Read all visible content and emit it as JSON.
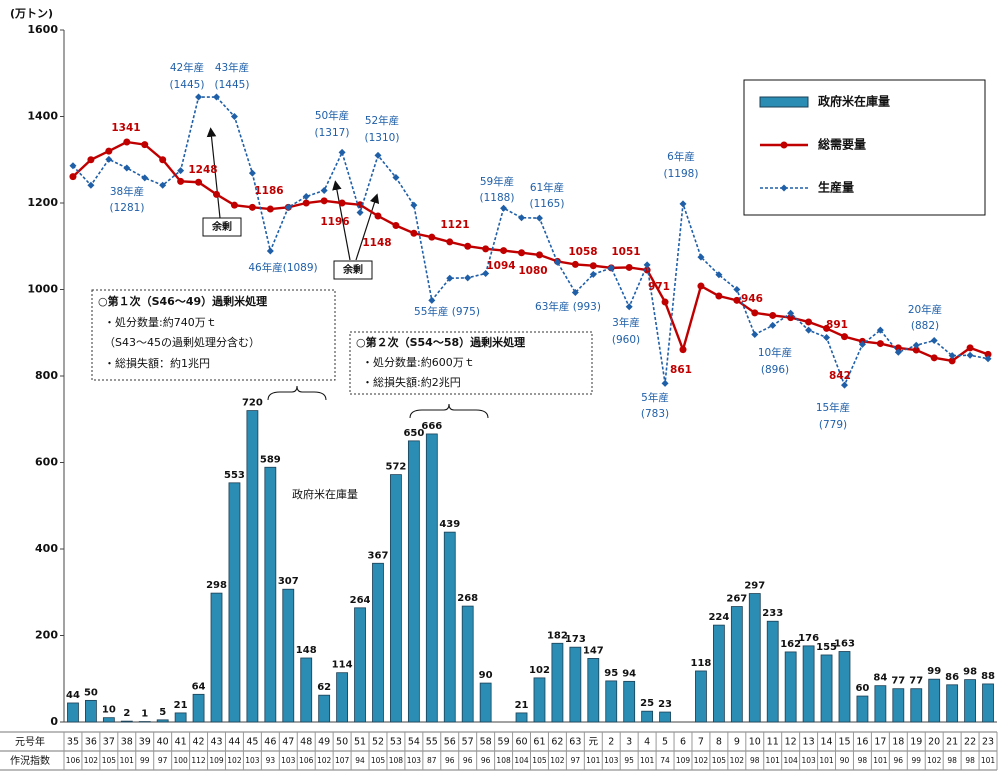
{
  "chart_data": {
    "type": "combo",
    "unit_label": "(万トン)",
    "row_labels": [
      "元号年",
      "作況指数"
    ],
    "categories": [
      "35",
      "36",
      "37",
      "38",
      "39",
      "40",
      "41",
      "42",
      "43",
      "44",
      "45",
      "46",
      "47",
      "48",
      "49",
      "50",
      "51",
      "52",
      "53",
      "54",
      "55",
      "56",
      "57",
      "58",
      "59",
      "60",
      "61",
      "62",
      "63",
      "元",
      "2",
      "3",
      "4",
      "5",
      "6",
      "7",
      "8",
      "9",
      "10",
      "11",
      "12",
      "13",
      "14",
      "15",
      "16",
      "17",
      "18",
      "19",
      "20",
      "21",
      "22",
      "23"
    ],
    "crop_index": [
      106,
      102,
      105,
      101,
      99,
      97,
      100,
      112,
      109,
      102,
      103,
      93,
      103,
      106,
      102,
      107,
      94,
      105,
      108,
      103,
      87,
      96,
      96,
      96,
      108,
      104,
      105,
      102,
      97,
      101,
      103,
      95,
      101,
      74,
      109,
      102,
      105,
      102,
      98,
      101,
      104,
      103,
      101,
      90,
      98,
      101,
      96,
      99,
      102,
      98,
      98,
      101
    ],
    "ylim": [
      0,
      1600
    ],
    "yticks": [
      0,
      200,
      400,
      600,
      800,
      1000,
      1200,
      1400,
      1600
    ],
    "legend": "upper right",
    "series": [
      {
        "name": "政府米在庫量",
        "kind": "bar",
        "color": "#2b8db3",
        "values": [
          44,
          50,
          10,
          2,
          1,
          5,
          21,
          64,
          298,
          553,
          720,
          589,
          307,
          148,
          62,
          114,
          264,
          367,
          572,
          650,
          666,
          439,
          268,
          90,
          null,
          21,
          102,
          182,
          173,
          147,
          95,
          94,
          25,
          23,
          null,
          118,
          224,
          267,
          297,
          233,
          162,
          176,
          155,
          163,
          60,
          84,
          77,
          77,
          99,
          86,
          98,
          88
        ]
      },
      {
        "name": "総需要量",
        "kind": "line",
        "color": "#c00000",
        "values": [
          1261,
          1300,
          1320,
          1341,
          1335,
          1300,
          1250,
          1248,
          1220,
          1195,
          1190,
          1186,
          1190,
          1200,
          1205,
          1200,
          1196,
          1170,
          1148,
          1130,
          1121,
          1110,
          1100,
          1094,
          1090,
          1085,
          1080,
          1065,
          1058,
          1055,
          1050,
          1051,
          1045,
          971,
          861,
          1008,
          985,
          975,
          946,
          940,
          935,
          925,
          910,
          891,
          880,
          875,
          865,
          860,
          842,
          835,
          865,
          850
        ]
      },
      {
        "name": "生産量",
        "kind": "dashed-line",
        "color": "#1f5fa8",
        "values": [
          1286,
          1241,
          1301,
          1281,
          1258,
          1241,
          1275,
          1445,
          1445,
          1400,
          1269,
          1089,
          1190,
          1215,
          1229,
          1317,
          1178,
          1310,
          1259,
          1195,
          975,
          1026,
          1027,
          1037,
          1188,
          1166,
          1165,
          1063,
          993,
          1035,
          1050,
          960,
          1057,
          783,
          1198,
          1075,
          1034,
          1000,
          896,
          917,
          945,
          906,
          889,
          779,
          873,
          906,
          855,
          871,
          882,
          847,
          848,
          840
        ]
      }
    ],
    "annotations": {
      "production": [
        "42年産",
        "(1445)",
        "43年産",
        "(1445)",
        "38年産",
        "(1281)",
        "46年産(1089)",
        "50年産",
        "(1317)",
        "52年産",
        "(1310)",
        "55年産 (975)",
        "59年産",
        "(1188)",
        "61年産",
        "(1165)",
        "63年産 (993)",
        "3年産",
        "(960)",
        "5年産",
        "(783)",
        "6年産",
        "(1198)",
        "10年産",
        "(896)",
        "15年産",
        "(779)",
        "20年産",
        "(882)"
      ],
      "demand": [
        "1341",
        "1248",
        "1186",
        "1196",
        "1148",
        "1121",
        "1094",
        "1080",
        "1058",
        "1051",
        "971",
        "861",
        "946",
        "891",
        "842"
      ],
      "surplus": [
        "余剰",
        "余剰"
      ],
      "stock_note": "政府米在庫量",
      "box1": [
        "○第１次（S46～49）過剰米処理",
        "・処分数量:約740万ｔ",
        "（S43～45の過剰処理分含む）",
        "・総損失額：約1兆円"
      ],
      "box2": [
        "○第２次（S54～58）過剰米処理",
        "・処分数量:約600万ｔ",
        "・総損失額:約2兆円"
      ]
    }
  }
}
